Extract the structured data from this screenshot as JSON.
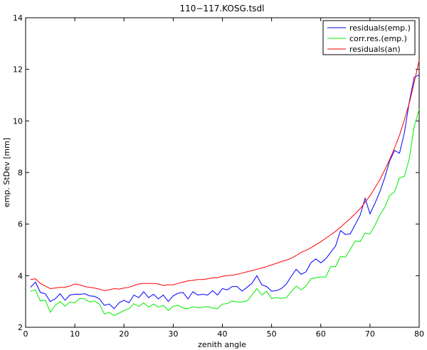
{
  "chart_data": {
    "type": "line",
    "title": "110−117.KOSG.tsdl",
    "xlabel": "zenith angle",
    "ylabel": "emp. StDev [mm]",
    "xlim": [
      0,
      80
    ],
    "ylim": [
      2,
      14
    ],
    "xticks": [
      "0",
      "10",
      "20",
      "30",
      "40",
      "50",
      "60",
      "70",
      "80"
    ],
    "yticks": [
      "2",
      "4",
      "6",
      "8",
      "10",
      "12",
      "14"
    ],
    "grid": false,
    "legend_position": "top-right",
    "x": [
      1,
      2,
      3,
      4,
      5,
      6,
      7,
      8,
      9,
      10,
      11,
      12,
      13,
      14,
      15,
      16,
      17,
      18,
      19,
      20,
      21,
      22,
      23,
      24,
      25,
      26,
      27,
      28,
      29,
      30,
      31,
      32,
      33,
      34,
      35,
      36,
      37,
      38,
      39,
      40,
      41,
      42,
      43,
      44,
      45,
      46,
      47,
      48,
      49,
      50,
      51,
      52,
      53,
      54,
      55,
      56,
      57,
      58,
      59,
      60,
      61,
      62,
      63,
      64,
      65,
      66,
      67,
      68,
      69,
      70,
      71,
      72,
      73,
      74,
      75,
      76,
      77,
      78,
      79,
      80
    ],
    "series": [
      {
        "name": "residuals(emp.)",
        "color": "#0000ff",
        "values": [
          3.55,
          3.75,
          3.35,
          3.3,
          3.0,
          3.1,
          3.3,
          3.05,
          3.25,
          3.28,
          3.28,
          3.3,
          3.22,
          3.2,
          3.1,
          2.85,
          2.9,
          2.72,
          2.95,
          3.05,
          2.95,
          3.25,
          3.15,
          3.38,
          3.15,
          3.28,
          3.1,
          3.25,
          3.0,
          3.22,
          3.32,
          3.35,
          3.1,
          3.38,
          3.25,
          3.28,
          3.25,
          3.42,
          3.25,
          3.5,
          3.45,
          3.58,
          3.58,
          3.4,
          3.55,
          3.7,
          4.0,
          3.65,
          3.58,
          3.4,
          3.42,
          3.5,
          3.68,
          3.98,
          4.25,
          4.05,
          4.15,
          4.5,
          4.65,
          4.5,
          4.65,
          4.9,
          5.15,
          5.75,
          5.6,
          5.62,
          5.98,
          6.35,
          7.0,
          6.4,
          6.8,
          7.25,
          7.8,
          8.45,
          8.85,
          8.75,
          9.55,
          10.75,
          11.7,
          11.78
        ]
      },
      {
        "name": "corr.res.(emp.)",
        "color": "#00ee00",
        "values": [
          3.4,
          3.45,
          3.02,
          3.05,
          2.58,
          2.85,
          3.0,
          2.82,
          2.98,
          2.95,
          3.12,
          3.1,
          2.98,
          3.02,
          2.9,
          2.52,
          2.58,
          2.45,
          2.55,
          2.65,
          2.72,
          2.92,
          2.8,
          2.95,
          2.78,
          2.9,
          2.78,
          2.85,
          2.65,
          2.82,
          2.85,
          2.75,
          2.72,
          2.8,
          2.75,
          2.78,
          2.8,
          2.75,
          2.72,
          2.9,
          2.92,
          3.02,
          2.98,
          2.98,
          3.02,
          3.25,
          3.5,
          3.25,
          3.4,
          3.12,
          3.15,
          3.12,
          3.15,
          3.38,
          3.6,
          3.45,
          3.6,
          3.88,
          3.92,
          3.95,
          3.95,
          4.35,
          4.35,
          4.75,
          4.72,
          5.02,
          5.35,
          5.32,
          5.65,
          5.62,
          5.95,
          6.35,
          6.65,
          7.1,
          7.25,
          7.8,
          7.85,
          8.55,
          9.8,
          10.45
        ]
      },
      {
        "name": "residuals(an)",
        "color": "#ff0000",
        "values": [
          3.85,
          3.88,
          3.7,
          3.6,
          3.5,
          3.52,
          3.55,
          3.55,
          3.6,
          3.68,
          3.65,
          3.58,
          3.55,
          3.52,
          3.48,
          3.42,
          3.45,
          3.5,
          3.48,
          3.52,
          3.55,
          3.62,
          3.68,
          3.7,
          3.7,
          3.7,
          3.68,
          3.62,
          3.65,
          3.65,
          3.7,
          3.75,
          3.8,
          3.82,
          3.85,
          3.85,
          3.88,
          3.92,
          3.92,
          3.98,
          4.0,
          4.02,
          4.05,
          4.1,
          4.15,
          4.2,
          4.25,
          4.3,
          4.35,
          4.42,
          4.48,
          4.55,
          4.6,
          4.68,
          4.78,
          4.9,
          4.98,
          5.08,
          5.2,
          5.32,
          5.45,
          5.58,
          5.72,
          5.88,
          6.05,
          6.22,
          6.4,
          6.6,
          6.85,
          7.1,
          7.4,
          7.72,
          8.1,
          8.5,
          8.95,
          9.45,
          10.05,
          10.7,
          11.5,
          12.35
        ]
      }
    ]
  }
}
